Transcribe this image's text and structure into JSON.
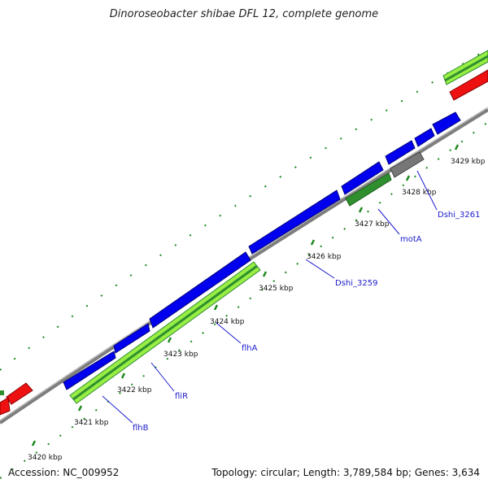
{
  "title": "Dinoroseobacter shibae DFL 12, complete genome",
  "footer": {
    "accession": "Accession: NC_009952",
    "topology": "Topology: circular; Length: 3,789,584 bp; Genes: 3,634"
  },
  "colors": {
    "background": "#ffffff",
    "backbone": "#888888",
    "forward_cds": "#0000ee",
    "reverse_cds_light": "#99ee44",
    "reverse_cds_dark": "#2f8f2f",
    "rna_red": "#ee1111",
    "grey_feature": "#777777",
    "tick": "#1d8a1d",
    "label": "#1a1acc"
  },
  "ticks": [
    {
      "label": "3420 kbp"
    },
    {
      "label": "3421 kbp"
    },
    {
      "label": "3422 kbp"
    },
    {
      "label": "3423 kbp"
    },
    {
      "label": "3424 kbp"
    },
    {
      "label": "3425 kbp"
    },
    {
      "label": "3426 kbp"
    },
    {
      "label": "3427 kbp"
    },
    {
      "label": "3428 kbp"
    },
    {
      "label": "3429 kbp"
    }
  ],
  "gene_labels": [
    {
      "label": "flhB"
    },
    {
      "label": "fliR"
    },
    {
      "label": "flhA"
    },
    {
      "label": "Dshi_3259"
    },
    {
      "label": "motA"
    },
    {
      "label": "Dshi_3261"
    }
  ]
}
